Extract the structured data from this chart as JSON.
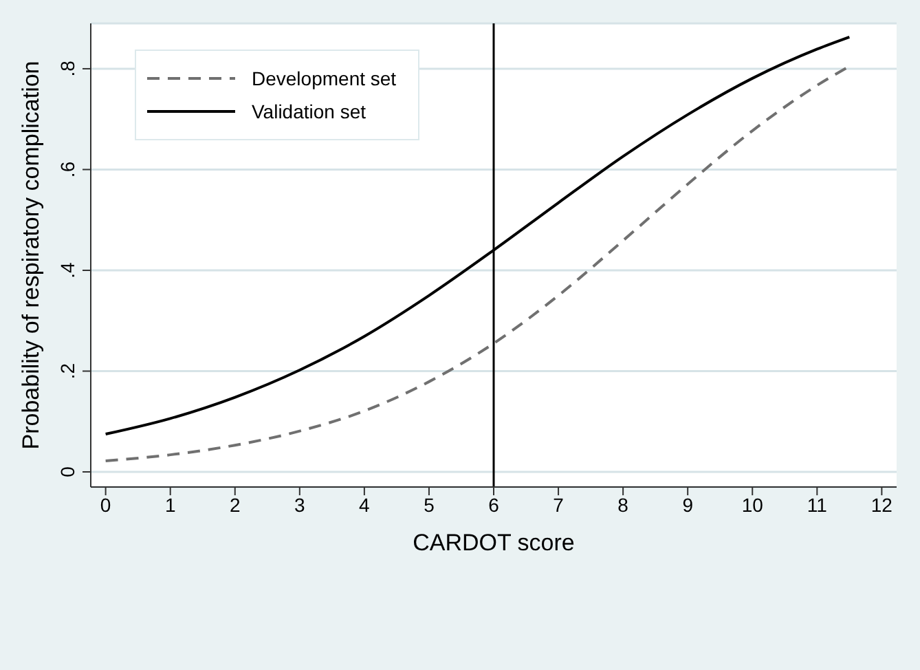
{
  "chart_data": {
    "type": "line",
    "xlabel": "CARDOT score",
    "ylabel": "Probability of respiratory complication",
    "x": [
      0,
      1,
      2,
      3,
      4,
      5,
      6,
      7,
      8,
      9,
      10,
      11,
      11.5
    ],
    "series": [
      {
        "name": "Development set",
        "color": "#707070",
        "line_style": "dashed",
        "values": [
          0.022,
          0.034,
          0.053,
          0.081,
          0.121,
          0.179,
          0.255,
          0.35,
          0.459,
          0.571,
          0.677,
          0.767,
          0.805
        ]
      },
      {
        "name": "Validation set",
        "color": "#000000",
        "line_style": "solid",
        "values": [
          0.075,
          0.106,
          0.148,
          0.202,
          0.269,
          0.35,
          0.44,
          0.534,
          0.626,
          0.709,
          0.781,
          0.839,
          0.863
        ]
      }
    ],
    "xlim": [
      -0.23,
      12.23
    ],
    "xticks": [
      0,
      1,
      2,
      3,
      4,
      5,
      6,
      7,
      8,
      9,
      10,
      11,
      12
    ],
    "ylim": [
      -0.03,
      0.89
    ],
    "yticks": [
      0,
      {
        "value": 0.2,
        "label": ".2"
      },
      {
        "value": 0.4,
        "label": ".4"
      },
      {
        "value": 0.6,
        "label": ".6"
      },
      {
        "value": 0.8,
        "label": ".8"
      }
    ],
    "ref_lines": [
      {
        "axis": "x",
        "value": 6,
        "color": "#000000"
      }
    ],
    "grid": "y",
    "legend": "top left",
    "marker": "none"
  }
}
